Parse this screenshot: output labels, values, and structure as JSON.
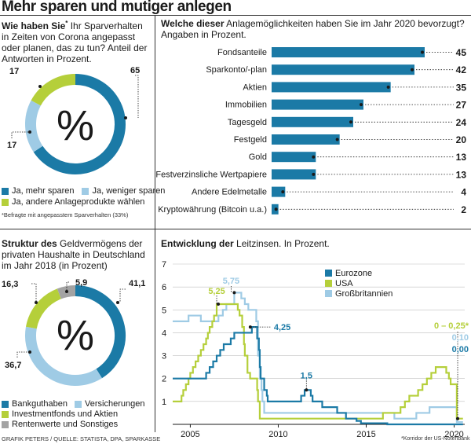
{
  "headline": "Mehr sparen und mutiger anlegen",
  "colors": {
    "dark_blue": "#1b7aa6",
    "light_blue": "#9fcbe5",
    "green": "#b5cf3a",
    "gray": "#a3a3a3",
    "ink": "#1a1a1a"
  },
  "panel1": {
    "title_bold": "Wie haben Sie",
    "title_star": "*",
    "title_rest": " Ihr Sparverhalten in Zeiten von Corona angepasst oder planen, das zu tun? Anteil der Antworten in Prozent.",
    "center_symbol": "%",
    "footnote": "*Befragte mit angepasstem Sparverhalten (33%)",
    "legend": [
      {
        "label": "Ja, mehr sparen",
        "color": "#1b7aa6"
      },
      {
        "label": "Ja, weniger sparen",
        "color": "#9fcbe5"
      },
      {
        "label": "Ja, andere Anlageprodukte wählen",
        "color": "#b5cf3a"
      }
    ]
  },
  "panel2": {
    "title_bold": "Welche dieser",
    "title_rest": " Anlagemöglichkeiten haben Sie im Jahr 2020 bevorzugt? Angaben in Prozent."
  },
  "panel3": {
    "title_bold": "Struktur des",
    "title_rest": " Geldvermögens der privaten Haushalte in Deutschland im Jahr 2018 (in Prozent)",
    "center_symbol": "%",
    "legend": [
      {
        "label": "Bankguthaben",
        "color": "#1b7aa6"
      },
      {
        "label": "Versicherungen",
        "color": "#9fcbe5"
      },
      {
        "label": "Investmentfonds und Aktien",
        "color": "#b5cf3a"
      },
      {
        "label": "Rentenwerte und Sonstiges",
        "color": "#a3a3a3"
      }
    ]
  },
  "panel4": {
    "title_bold": "Entwicklung der",
    "title_rest": " Leitzinsen. In Prozent.",
    "footnote": "*Korridor der US-Notenbank"
  },
  "credit": "GRAFIK PETERS / QUELLE: STATISTA, DPA, SPARKASSE",
  "chart_data": [
    {
      "type": "pie",
      "labels": [
        "Ja, mehr sparen",
        "Ja, weniger sparen",
        "Ja, andere Anlageprodukte wählen"
      ],
      "values": [
        65,
        17,
        17
      ],
      "value_labels": [
        "65",
        "17",
        "17"
      ],
      "colors": [
        "#1b7aa6",
        "#9fcbe5",
        "#b5cf3a"
      ],
      "donut": true
    },
    {
      "type": "bar",
      "orientation": "horizontal",
      "categories": [
        "Fondsanteile",
        "Sparkonto/-plan",
        "Aktien",
        "Immobilien",
        "Tagesgeld",
        "Festgeld",
        "Gold",
        "Festverzinsliche Wertpapiere",
        "Andere Edelmetalle",
        "Kryptowährung (Bitcoin u.a.)"
      ],
      "values": [
        45,
        42,
        35,
        27,
        24,
        20,
        13,
        13,
        4,
        2
      ],
      "xlim": [
        0,
        45
      ],
      "color": "#1b7aa6"
    },
    {
      "type": "pie",
      "labels": [
        "Bankguthaben",
        "Versicherungen",
        "Investmentfonds und Aktien",
        "Rentenwerte und Sonstiges"
      ],
      "values": [
        41.1,
        36.7,
        16.3,
        5.9
      ],
      "value_labels": [
        "41,1",
        "36,7",
        "16,3",
        "5,9"
      ],
      "colors": [
        "#1b7aa6",
        "#9fcbe5",
        "#b5cf3a",
        "#a3a3a3"
      ],
      "donut": true
    },
    {
      "type": "line",
      "step": true,
      "xlim": [
        2004,
        2020.6
      ],
      "ylim": [
        0,
        7
      ],
      "x_ticks": [
        2005,
        2010,
        2015,
        2020
      ],
      "x_tick_labels": [
        "2005",
        "2010",
        "2015",
        "2020"
      ],
      "y_ticks": [
        1,
        2,
        3,
        4,
        5,
        6,
        7
      ],
      "y_tick_labels": [
        "1",
        "2",
        "3",
        "4",
        "5",
        "6",
        "7"
      ],
      "grid": "y",
      "legend_position": "top-right",
      "series": [
        {
          "name": "Eurozone",
          "color": "#1b7aa6",
          "points": [
            [
              2004,
              2.0
            ],
            [
              2005.9,
              2.25
            ],
            [
              2006.1,
              2.5
            ],
            [
              2006.3,
              2.75
            ],
            [
              2006.5,
              3.0
            ],
            [
              2006.7,
              3.25
            ],
            [
              2006.9,
              3.5
            ],
            [
              2007.3,
              3.75
            ],
            [
              2007.5,
              4.0
            ],
            [
              2008.5,
              4.25
            ],
            [
              2008.8,
              3.75
            ],
            [
              2008.9,
              3.25
            ],
            [
              2008.95,
              2.5
            ],
            [
              2009.0,
              2.0
            ],
            [
              2009.2,
              1.5
            ],
            [
              2009.35,
              1.25
            ],
            [
              2009.4,
              1.0
            ],
            [
              2011.3,
              1.25
            ],
            [
              2011.5,
              1.5
            ],
            [
              2011.85,
              1.25
            ],
            [
              2011.95,
              1.0
            ],
            [
              2012.5,
              0.75
            ],
            [
              2013.35,
              0.5
            ],
            [
              2013.85,
              0.25
            ],
            [
              2014.45,
              0.15
            ],
            [
              2014.7,
              0.05
            ],
            [
              2016.2,
              0.0
            ],
            [
              2020.5,
              0.0
            ]
          ]
        },
        {
          "name": "USA",
          "color": "#b5cf3a",
          "points": [
            [
              2004,
              1.0
            ],
            [
              2004.5,
              1.25
            ],
            [
              2004.6,
              1.5
            ],
            [
              2004.75,
              1.75
            ],
            [
              2004.9,
              2.0
            ],
            [
              2005.0,
              2.25
            ],
            [
              2005.15,
              2.5
            ],
            [
              2005.3,
              2.75
            ],
            [
              2005.45,
              3.0
            ],
            [
              2005.6,
              3.25
            ],
            [
              2005.75,
              3.5
            ],
            [
              2005.9,
              3.75
            ],
            [
              2006.0,
              4.0
            ],
            [
              2006.1,
              4.25
            ],
            [
              2006.25,
              4.5
            ],
            [
              2006.35,
              4.75
            ],
            [
              2006.5,
              5.25
            ],
            [
              2007.7,
              5.0
            ],
            [
              2007.8,
              4.75
            ],
            [
              2007.95,
              4.25
            ],
            [
              2008.05,
              3.5
            ],
            [
              2008.1,
              3.0
            ],
            [
              2008.25,
              2.25
            ],
            [
              2008.4,
              2.0
            ],
            [
              2008.8,
              1.5
            ],
            [
              2008.85,
              1.0
            ],
            [
              2008.95,
              0.25
            ],
            [
              2015.95,
              0.5
            ],
            [
              2016.95,
              0.75
            ],
            [
              2017.2,
              1.0
            ],
            [
              2017.45,
              1.25
            ],
            [
              2017.95,
              1.5
            ],
            [
              2018.2,
              1.75
            ],
            [
              2018.45,
              2.0
            ],
            [
              2018.7,
              2.25
            ],
            [
              2018.95,
              2.5
            ],
            [
              2019.55,
              2.25
            ],
            [
              2019.7,
              2.0
            ],
            [
              2019.8,
              1.75
            ],
            [
              2020.15,
              0.25
            ],
            [
              2020.5,
              0.25
            ]
          ]
        },
        {
          "name": "Großbritannien",
          "color": "#9fcbe5",
          "points": [
            [
              2004,
              4.5
            ],
            [
              2004.9,
              4.75
            ],
            [
              2005.6,
              4.5
            ],
            [
              2006.6,
              4.75
            ],
            [
              2006.85,
              5.0
            ],
            [
              2007.05,
              5.25
            ],
            [
              2007.5,
              5.75
            ],
            [
              2007.9,
              5.5
            ],
            [
              2008.1,
              5.25
            ],
            [
              2008.3,
              5.0
            ],
            [
              2008.75,
              4.5
            ],
            [
              2008.85,
              3.0
            ],
            [
              2008.95,
              2.0
            ],
            [
              2009.05,
              1.5
            ],
            [
              2009.1,
              1.0
            ],
            [
              2009.2,
              0.5
            ],
            [
              2016.6,
              0.25
            ],
            [
              2017.85,
              0.5
            ],
            [
              2018.6,
              0.75
            ],
            [
              2020.15,
              0.1
            ],
            [
              2020.5,
              0.1
            ]
          ]
        }
      ],
      "annotations": [
        {
          "text": "5,75",
          "color": "#9fcbe5"
        },
        {
          "text": "5,25",
          "color": "#b5cf3a"
        },
        {
          "text": "4,25",
          "color": "#1b7aa6"
        },
        {
          "text": "1,5",
          "color": "#1b7aa6"
        },
        {
          "text": "0 – 0,25*",
          "color": "#b5cf3a"
        },
        {
          "text": "0,10",
          "color": "#9fcbe5"
        },
        {
          "text": "0,00",
          "color": "#1b7aa6"
        }
      ]
    }
  ]
}
